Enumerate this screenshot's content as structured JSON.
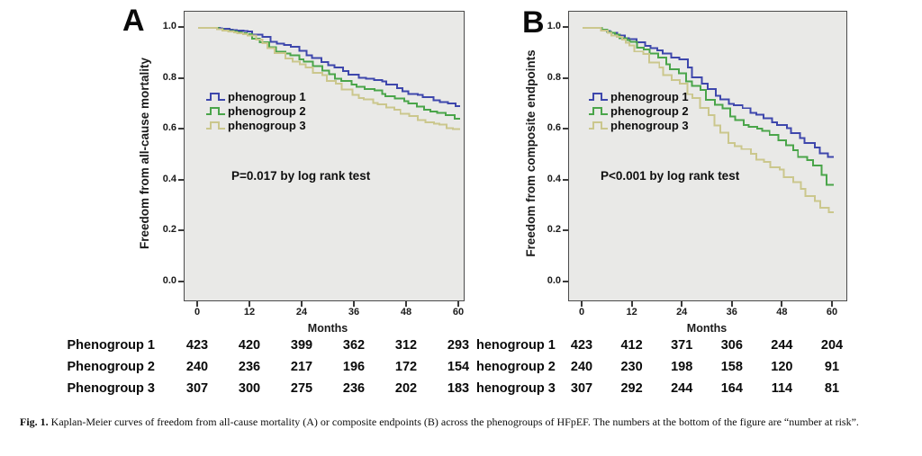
{
  "caption": {
    "label": "Fig. 1.",
    "text": "Kaplan-Meier curves of freedom from all-cause mortality (A) or composite endpoints (B) across the phenogroups of HFpEF. The numbers at the bottom of the figure are “number at risk”."
  },
  "colors": {
    "phenogroup1": "#3e47ac",
    "phenogroup2": "#4aa54a",
    "phenogroup3": "#cbc78d",
    "plot_bg": "#e9e9e7",
    "axis": "#4b4b4b"
  },
  "chart_data": [
    {
      "type": "line",
      "subtype": "kaplan-meier-step",
      "panel_label": "A",
      "xlabel": "Months",
      "ylabel": "Freedom from all-cause mortality",
      "x": [
        0,
        12,
        24,
        36,
        48,
        60
      ],
      "xticks": [
        "0",
        "12",
        "24",
        "36",
        "48",
        "60"
      ],
      "yticks": [
        "1.0",
        "0.8",
        "0.6",
        "0.4",
        "0.2",
        "0.0"
      ],
      "ytick_values": [
        1.0,
        0.8,
        0.6,
        0.4,
        0.2,
        0.0
      ],
      "xlim": [
        0,
        63
      ],
      "ylim": [
        0,
        1.05
      ],
      "grid": false,
      "legend_position": "upper-left-inside",
      "annotation": "P=0.017 by log rank test",
      "series": [
        {
          "name": "phenogroup 1",
          "color_key": "phenogroup1",
          "values": [
            1.0,
            0.985,
            0.91,
            0.815,
            0.75,
            0.69
          ]
        },
        {
          "name": "phenogroup 2",
          "color_key": "phenogroup2",
          "values": [
            1.0,
            0.975,
            0.875,
            0.775,
            0.71,
            0.64
          ]
        },
        {
          "name": "phenogroup 3",
          "color_key": "phenogroup3",
          "values": [
            1.0,
            0.97,
            0.855,
            0.735,
            0.66,
            0.6
          ]
        }
      ],
      "number_at_risk": {
        "row_labels": [
          "Phenogroup 1",
          "Phenogroup 2",
          "Phenogroup 3"
        ],
        "columns": [
          "0",
          "12",
          "24",
          "36",
          "48",
          "60"
        ],
        "rows": [
          [
            "423",
            "420",
            "399",
            "362",
            "312",
            "293"
          ],
          [
            "240",
            "236",
            "217",
            "196",
            "172",
            "154"
          ],
          [
            "307",
            "300",
            "275",
            "236",
            "202",
            "183"
          ]
        ]
      }
    },
    {
      "type": "line",
      "subtype": "kaplan-meier-step",
      "panel_label": "B",
      "xlabel": "Months",
      "ylabel": "Freedom from composite endpoints",
      "x": [
        0,
        12,
        24,
        36,
        48,
        60
      ],
      "xticks": [
        "0",
        "12",
        "24",
        "36",
        "48",
        "60"
      ],
      "yticks": [
        "1.0",
        "0.8",
        "0.6",
        "0.4",
        "0.2",
        "0.0"
      ],
      "ytick_values": [
        1.0,
        0.8,
        0.6,
        0.4,
        0.2,
        0.0
      ],
      "xlim": [
        0,
        63
      ],
      "ylim": [
        0,
        1.05
      ],
      "grid": false,
      "legend_position": "upper-left-inside",
      "annotation": "P<0.001 by log rank test",
      "series": [
        {
          "name": "phenogroup 1",
          "color_key": "phenogroup1",
          "values": [
            1.0,
            0.955,
            0.875,
            0.7,
            0.615,
            0.49
          ]
        },
        {
          "name": "phenogroup 2",
          "color_key": "phenogroup2",
          "values": [
            1.0,
            0.945,
            0.82,
            0.65,
            0.555,
            0.38
          ]
        },
        {
          "name": "phenogroup 3",
          "color_key": "phenogroup3",
          "values": [
            1.0,
            0.93,
            0.78,
            0.545,
            0.44,
            0.27
          ]
        }
      ],
      "number_at_risk": {
        "row_labels": [
          "henogroup 1",
          "henogroup 2",
          "henogroup 3"
        ],
        "columns": [
          "0",
          "12",
          "24",
          "36",
          "48",
          "60"
        ],
        "rows": [
          [
            "423",
            "412",
            "371",
            "306",
            "244",
            "204"
          ],
          [
            "240",
            "230",
            "198",
            "158",
            "120",
            "91"
          ],
          [
            "307",
            "292",
            "244",
            "164",
            "114",
            "81"
          ]
        ]
      }
    }
  ]
}
